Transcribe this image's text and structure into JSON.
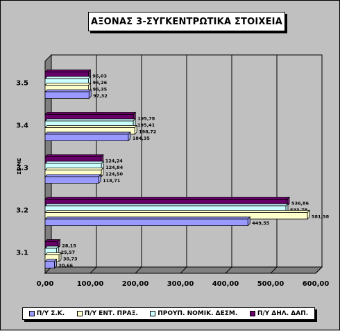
{
  "chart_data": {
    "type": "bar",
    "orientation": "horizontal",
    "title": "ΑΞΟΝΑΣ 3-ΣΥΓΚΕΝΤΡΩΤΙΚΑ ΣΤΟΙΧΕΙΑ",
    "ylabel": "ΣΕ ΜΕ",
    "xlabel": "",
    "categories": [
      "3.1",
      "3.2",
      "3.3",
      "3.4",
      "3.5"
    ],
    "xlim": [
      0,
      600
    ],
    "x_ticks": [
      "0,00",
      "100,00",
      "200,00",
      "300,00",
      "400,00",
      "500,00",
      "600,00"
    ],
    "grid": true,
    "legend_position": "bottom",
    "series": [
      {
        "name": "Π/Υ Σ.Κ.",
        "color": "#9999ff",
        "values": [
          20.66,
          449.55,
          118.71,
          184.35,
          97.32
        ],
        "labels": [
          "20,66",
          "449,55",
          "118,71",
          "184,35",
          "97,32"
        ]
      },
      {
        "name": "Π/Υ ΕΝΤ. ΠΡΑΞ.",
        "color": "#ffffcc",
        "values": [
          30.73,
          581.58,
          124.5,
          198.72,
          96.35
        ],
        "labels": [
          "30,73",
          "581,58",
          "124,50",
          "198,72",
          "96,35"
        ]
      },
      {
        "name": "ΠΡΟΥΠ. ΝΟΜΙΚ. ΔΕΣΜ.",
        "color": "#ccffff",
        "values": [
          25.57,
          533.78,
          124.84,
          195.41,
          96.26
        ],
        "labels": [
          "25,57",
          "533,78",
          "124,84",
          "195,41",
          "96,26"
        ]
      },
      {
        "name": "Π/Υ ΔΗΛ. ΔΑΠ.",
        "color": "#660066",
        "values": [
          28.15,
          536.86,
          124.24,
          195.78,
          96.03
        ],
        "labels": [
          "28,15",
          "536,86",
          "124,24",
          "195,78",
          "96,03"
        ]
      }
    ]
  }
}
